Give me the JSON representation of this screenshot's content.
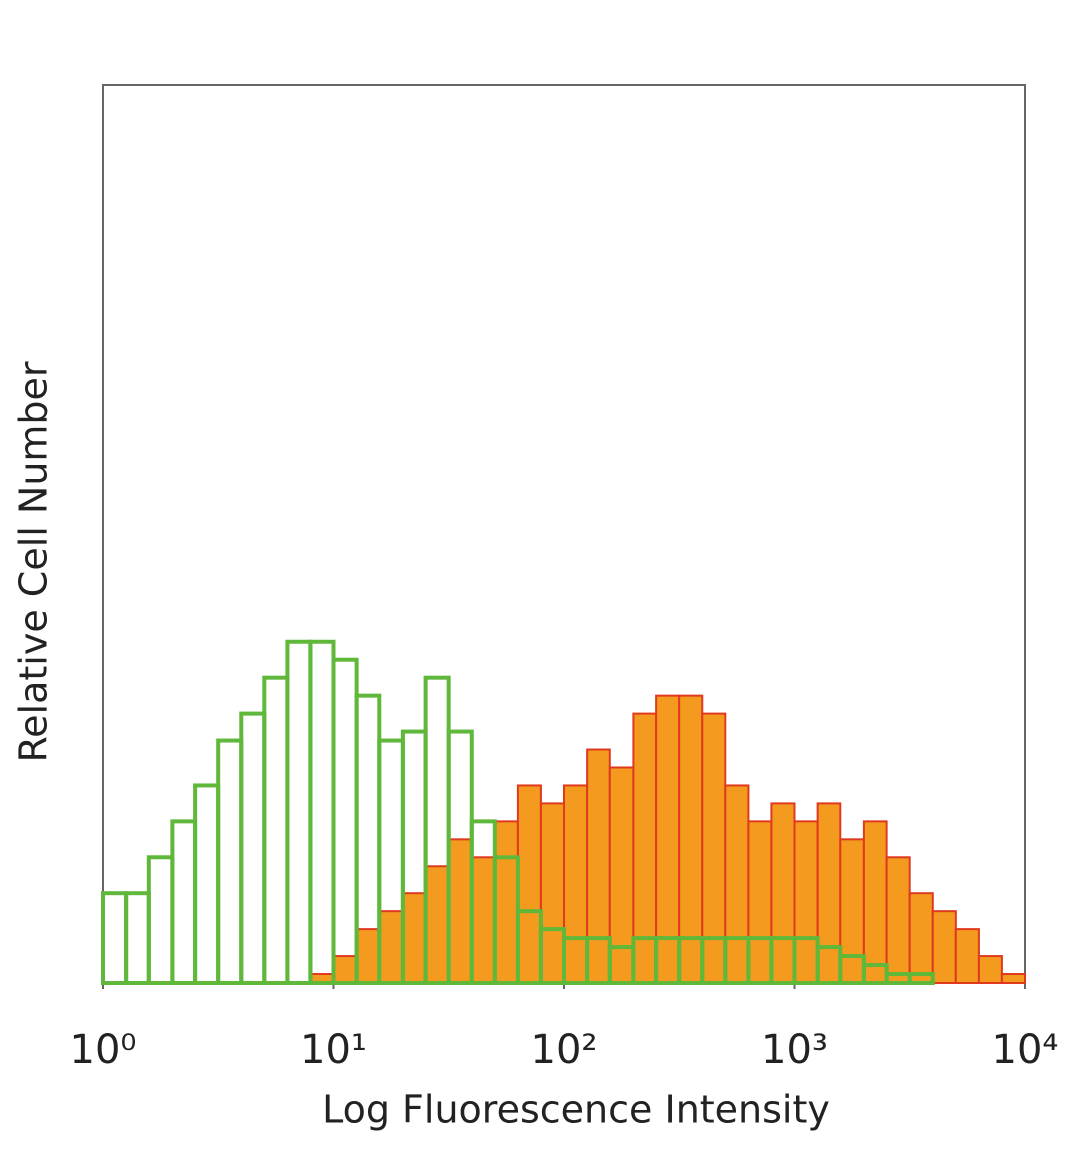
{
  "chart_data": {
    "type": "histogram",
    "x_label": "Log Fluorescence Intensity",
    "y_label": "Relative Cell Number",
    "xscale": "log",
    "xlim": [
      1,
      10000
    ],
    "ylim": [
      0,
      100
    ],
    "xticks": [
      {
        "value": 1,
        "label": "10⁰"
      },
      {
        "value": 10,
        "label": "10¹"
      },
      {
        "value": 100,
        "label": "10²"
      },
      {
        "value": 1000,
        "label": "10³"
      },
      {
        "value": 10000,
        "label": "10⁴"
      }
    ],
    "bins": [
      1,
      1.26,
      1.58,
      2,
      2.51,
      3.16,
      3.98,
      5.01,
      6.31,
      7.94,
      10,
      12.6,
      15.8,
      20,
      25.1,
      31.6,
      39.8,
      50.1,
      63.1,
      79.4,
      100,
      126,
      158,
      200,
      251,
      316,
      398,
      501,
      631,
      794,
      1000,
      1260,
      1580,
      2000,
      2510,
      3160,
      3980,
      5010,
      6310,
      7940,
      10000
    ],
    "series": [
      {
        "color": "#f39a1f",
        "edge_color": "#e03a1e",
        "fill": true,
        "values": [
          0,
          0,
          0,
          0,
          0,
          0,
          0,
          0,
          0,
          1,
          3,
          6,
          8,
          10,
          13,
          16,
          14,
          18,
          22,
          20,
          22,
          26,
          24,
          30,
          32,
          32,
          30,
          22,
          18,
          20,
          18,
          20,
          16,
          18,
          14,
          10,
          8,
          6,
          3,
          1
        ]
      },
      {
        "color": "#5fb83a",
        "fill": false,
        "values": [
          10,
          10,
          14,
          18,
          22,
          27,
          30,
          34,
          38,
          38,
          36,
          32,
          27,
          28,
          34,
          28,
          18,
          14,
          8,
          6,
          5,
          5,
          4,
          5,
          5,
          5,
          5,
          5,
          5,
          5,
          5,
          4,
          3,
          2,
          1,
          1,
          0,
          0,
          0,
          0
        ]
      }
    ]
  }
}
